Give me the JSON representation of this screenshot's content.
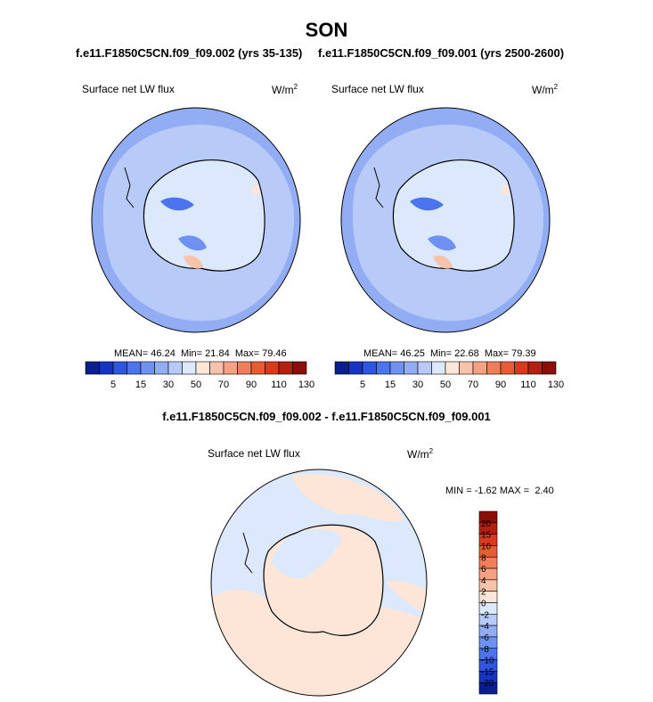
{
  "title": "SON",
  "case_left": "f.e11.F1850C5CN.f09_f09.002 (yrs 35-135)",
  "case_right": "f.e11.F1850C5CN.f09_f09.001 (yrs 2500-2600)",
  "diff_title": "f.e11.F1850C5CN.f09_f09.002 - f.e11.F1850C5CN.f09_f09.001",
  "variable": "Surface net LW flux",
  "units_base": "W/m",
  "units_exp": "2",
  "panel_left": {
    "mean_label": "MEAN=",
    "mean": "46.24",
    "min_label": "Min=",
    "min": "21.84",
    "max_label": "Max=",
    "max": "79.46"
  },
  "panel_right": {
    "mean_label": "MEAN=",
    "mean": "46.25",
    "min_label": "Min=",
    "min": "22.68",
    "max_label": "Max=",
    "max": "79.39"
  },
  "diff_stats": {
    "min_label": "MIN =",
    "min": "-1.62",
    "max_label": "MAX =",
    "max": "2.40"
  },
  "colorbar_top": {
    "colors": [
      "#0a1f8f",
      "#1634c4",
      "#2f56e0",
      "#4d74ef",
      "#6f91f2",
      "#93adf4",
      "#b8cbf8",
      "#dce8fb",
      "#fde6d8",
      "#f8c3ab",
      "#f4a184",
      "#f07e5b",
      "#eb5b33",
      "#d9391c",
      "#b3200f",
      "#8b0f06"
    ],
    "labels": [
      "5",
      "15",
      "30",
      "50",
      "70",
      "90",
      "110",
      "130"
    ]
  },
  "colorbar_diff": {
    "colors": [
      "#8b0f06",
      "#b3200f",
      "#d9391c",
      "#eb5b33",
      "#f07e5b",
      "#f4a184",
      "#f8c3ab",
      "#fde6d8",
      "#dce8fb",
      "#b8cbf8",
      "#93adf4",
      "#6f91f2",
      "#4d74ef",
      "#2f56e0",
      "#1634c4",
      "#0a1f8f"
    ],
    "labels": [
      "20",
      "15",
      "10",
      "8",
      "6",
      "4",
      "2",
      "0",
      "-2",
      "-4",
      "-6",
      "-8",
      "-10",
      "-15",
      "-20"
    ]
  },
  "colors": {
    "ocean_mid": "#b8cbf8",
    "ocean_outer": "#93adf4",
    "land": "#dce8fb",
    "diff_pos": "#fde6d8",
    "diff_neg": "#dce8fb"
  }
}
